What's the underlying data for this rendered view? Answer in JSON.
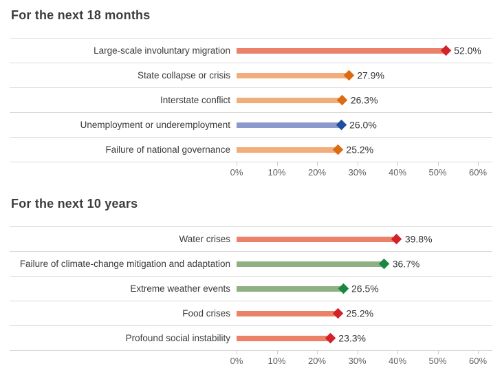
{
  "page": {
    "background": "#ffffff",
    "separator_color": "#d9d9d9"
  },
  "chart_data": [
    {
      "type": "bar",
      "orientation": "horizontal",
      "title": "For the next 18 months",
      "xlabel": "",
      "ylabel": "",
      "xlim": [
        0,
        60
      ],
      "x_tick_labels": [
        "0%",
        "10%",
        "20%",
        "30%",
        "40%",
        "50%",
        "60%"
      ],
      "x_tick_values": [
        0,
        10,
        20,
        30,
        40,
        50,
        60
      ],
      "grid": "row-separators",
      "legend": "none",
      "marker": "diamond",
      "rows": [
        {
          "label": "Large-scale involuntary migration",
          "value": 52.0,
          "display": "52.0%",
          "bar_color": "#eb8169",
          "marker_color": "#d2232a"
        },
        {
          "label": "State collapse or crisis",
          "value": 27.9,
          "display": "27.9%",
          "bar_color": "#f2ad7d",
          "marker_color": "#dd6b10"
        },
        {
          "label": "Interstate conflict",
          "value": 26.3,
          "display": "26.3%",
          "bar_color": "#f2ad7d",
          "marker_color": "#dd6b10"
        },
        {
          "label": "Unemployment or underemployment",
          "value": 26.0,
          "display": "26.0%",
          "bar_color": "#8c9acb",
          "marker_color": "#1f4e9f"
        },
        {
          "label": "Failure of national governance",
          "value": 25.2,
          "display": "25.2%",
          "bar_color": "#f2ad7d",
          "marker_color": "#dd6b10"
        }
      ]
    },
    {
      "type": "bar",
      "orientation": "horizontal",
      "title": "For the next 10 years",
      "xlabel": "",
      "ylabel": "",
      "xlim": [
        0,
        60
      ],
      "x_tick_labels": [
        "0%",
        "10%",
        "20%",
        "30%",
        "40%",
        "50%",
        "60%"
      ],
      "x_tick_values": [
        0,
        10,
        20,
        30,
        40,
        50,
        60
      ],
      "grid": "row-separators",
      "legend": "none",
      "marker": "diamond",
      "rows": [
        {
          "label": "Water crises",
          "value": 39.8,
          "display": "39.8%",
          "bar_color": "#eb8169",
          "marker_color": "#d2232a"
        },
        {
          "label": "Failure of climate-change mitigation and adaptation",
          "value": 36.7,
          "display": "36.7%",
          "bar_color": "#8fb081",
          "marker_color": "#178741"
        },
        {
          "label": "Extreme weather events",
          "value": 26.5,
          "display": "26.5%",
          "bar_color": "#8fb081",
          "marker_color": "#178741"
        },
        {
          "label": "Food crises",
          "value": 25.2,
          "display": "25.2%",
          "bar_color": "#eb8169",
          "marker_color": "#d2232a"
        },
        {
          "label": "Profound social instability",
          "value": 23.3,
          "display": "23.3%",
          "bar_color": "#eb8169",
          "marker_color": "#d2232a"
        }
      ]
    }
  ]
}
